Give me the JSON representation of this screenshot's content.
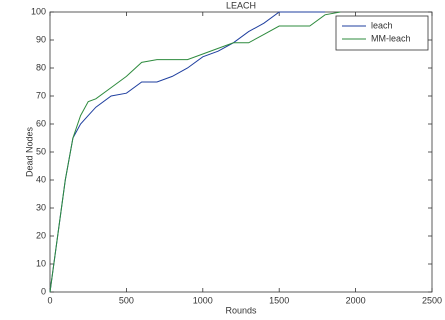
{
  "chart_data": {
    "type": "line",
    "title": "LEACH",
    "x_label": "Rounds",
    "y_label": "Dead Nodes",
    "x": [
      0,
      50,
      100,
      150,
      200,
      250,
      300,
      400,
      500,
      600,
      700,
      800,
      900,
      1000,
      1100,
      1200,
      1300,
      1400,
      1500,
      1600,
      1700,
      1800,
      1900
    ],
    "series": [
      {
        "name": "leach",
        "color": "#1f3f9f",
        "values": [
          0,
          20,
          40,
          55,
          60,
          63,
          66,
          70,
          71,
          75,
          75,
          77,
          80,
          84,
          86,
          89,
          93,
          96,
          100,
          100,
          100,
          100,
          null
        ]
      },
      {
        "name": "MM-leach",
        "color": "#2e8b3e",
        "values": [
          0,
          20,
          40,
          55,
          63,
          68,
          69,
          73,
          77,
          82,
          83,
          83,
          83,
          85,
          87,
          89,
          89,
          92,
          95,
          95,
          95,
          99,
          100
        ]
      }
    ],
    "xlim": [
      0,
      2500
    ],
    "xticks": [
      0,
      500,
      1000,
      1500,
      2000,
      2500
    ],
    "ylim": [
      0,
      100
    ],
    "yticks": [
      0,
      10,
      20,
      30,
      40,
      50,
      60,
      70,
      80,
      90,
      100
    ],
    "grid": false,
    "legend": "top-right"
  }
}
